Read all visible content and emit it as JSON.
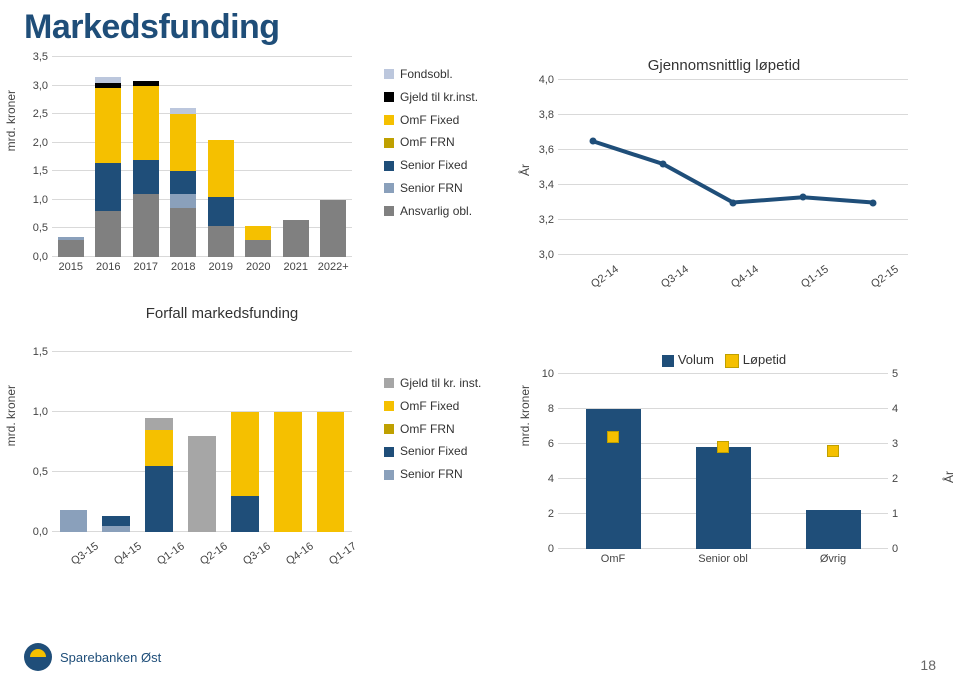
{
  "title": "Markedsfunding",
  "page_number": "18",
  "logo_text": "Sparebanken Øst",
  "colors": {
    "heading": "#1f4e79",
    "grid": "#d9d9d9",
    "fondsobl": "#bcc7dd",
    "gjeld": "#000000",
    "omf_fixed": "#f5c000",
    "omf_frn": "#bfa000",
    "senior_fixed": "#1f4e79",
    "senior_frn": "#8aa0bb",
    "ansvarlig": "#808080",
    "gjeld_inst": "#a6a6a6",
    "line": "#1f4e79",
    "volume_bar": "#1f4e79"
  },
  "chart1": {
    "axis_label": "mrd. kroner",
    "ylim": [
      0,
      3.5
    ],
    "ystep": 0.5,
    "categories": [
      "2015",
      "2016",
      "2017",
      "2018",
      "2019",
      "2020",
      "2021",
      "2022+"
    ],
    "legend": [
      {
        "key": "fondsobl",
        "label": "Fondsobl."
      },
      {
        "key": "gjeld",
        "label": "Gjeld til kr.inst."
      },
      {
        "key": "omf_fixed",
        "label": "OmF Fixed"
      },
      {
        "key": "omf_frn",
        "label": "OmF FRN"
      },
      {
        "key": "senior_fixed",
        "label": "Senior Fixed"
      },
      {
        "key": "senior_frn",
        "label": "Senior FRN"
      },
      {
        "key": "ansvarlig",
        "label": "Ansvarlig obl."
      }
    ],
    "stacks": [
      {
        "ansvarlig": 0.3,
        "senior_frn": 0.05,
        "senior_fixed": 0.0,
        "omf_frn": 0.0,
        "omf_fixed": 0.0,
        "gjeld": 0.0,
        "fondsobl": 0.0
      },
      {
        "ansvarlig": 0.8,
        "senior_frn": 0.0,
        "senior_fixed": 0.85,
        "omf_frn": 0.0,
        "omf_fixed": 1.3,
        "gjeld": 0.1,
        "fondsobl": 0.1
      },
      {
        "ansvarlig": 1.1,
        "senior_frn": 0.0,
        "senior_fixed": 0.6,
        "omf_frn": 0.0,
        "omf_fixed": 1.3,
        "gjeld": 0.08,
        "fondsobl": 0.0
      },
      {
        "ansvarlig": 0.85,
        "senior_frn": 0.25,
        "senior_fixed": 0.4,
        "omf_frn": 0.0,
        "omf_fixed": 1.0,
        "gjeld": 0.0,
        "fondsobl": 0.1
      },
      {
        "ansvarlig": 0.55,
        "senior_frn": 0.0,
        "senior_fixed": 0.5,
        "omf_frn": 0.0,
        "omf_fixed": 1.0,
        "gjeld": 0.0,
        "fondsobl": 0.0
      },
      {
        "ansvarlig": 0.3,
        "senior_frn": 0.0,
        "senior_fixed": 0.0,
        "omf_frn": 0.0,
        "omf_fixed": 0.25,
        "gjeld": 0.0,
        "fondsobl": 0.0
      },
      {
        "ansvarlig": 0.65,
        "senior_frn": 0.0,
        "senior_fixed": 0.0,
        "omf_frn": 0.0,
        "omf_fixed": 0.0,
        "gjeld": 0.0,
        "fondsobl": 0.0
      },
      {
        "ansvarlig": 1.0,
        "senior_frn": 0.0,
        "senior_fixed": 0.0,
        "omf_frn": 0.0,
        "omf_fixed": 0.0,
        "gjeld": 0.0,
        "fondsobl": 0.0
      }
    ],
    "subtitle": "Forfall markedsfunding"
  },
  "chart2": {
    "title": "Gjennomsnittlig løpetid",
    "axis_label": "År",
    "ylim": [
      3.0,
      4.0
    ],
    "ystep": 0.2,
    "categories": [
      "Q2-14",
      "Q3-14",
      "Q4-14",
      "Q1-15",
      "Q2-15"
    ],
    "values": [
      3.65,
      3.52,
      3.3,
      3.33,
      3.3
    ]
  },
  "chart3": {
    "axis_label": "mrd. kroner",
    "ylim": [
      0,
      1.5
    ],
    "ystep": 0.5,
    "categories": [
      "Q3-15",
      "Q4-15",
      "Q1-16",
      "Q2-16",
      "Q3-16",
      "Q4-16",
      "Q1-17"
    ],
    "legend": [
      {
        "key": "gjeld_inst",
        "label": "Gjeld til kr. inst."
      },
      {
        "key": "omf_fixed",
        "label": "OmF Fixed"
      },
      {
        "key": "omf_frn",
        "label": "OmF FRN"
      },
      {
        "key": "senior_fixed",
        "label": "Senior Fixed"
      },
      {
        "key": "senior_frn",
        "label": "Senior FRN"
      }
    ],
    "stacks": [
      {
        "senior_frn": 0.18,
        "senior_fixed": 0.0,
        "omf_frn": 0.0,
        "omf_fixed": 0.0,
        "gjeld_inst": 0.0
      },
      {
        "senior_frn": 0.05,
        "senior_fixed": 0.08,
        "omf_frn": 0.0,
        "omf_fixed": 0.0,
        "gjeld_inst": 0.0
      },
      {
        "senior_frn": 0.0,
        "senior_fixed": 0.55,
        "omf_frn": 0.0,
        "omf_fixed": 0.3,
        "gjeld_inst": 0.1
      },
      {
        "senior_frn": 0.0,
        "senior_fixed": 0.0,
        "omf_frn": 0.0,
        "omf_fixed": 0.0,
        "gjeld_inst": 0.8
      },
      {
        "senior_frn": 0.0,
        "senior_fixed": 0.3,
        "omf_frn": 0.0,
        "omf_fixed": 0.7,
        "gjeld_inst": 0.0
      },
      {
        "senior_frn": 0.0,
        "senior_fixed": 0.0,
        "omf_frn": 0.0,
        "omf_fixed": 1.0,
        "gjeld_inst": 0.0
      },
      {
        "senior_frn": 0.0,
        "senior_fixed": 0.0,
        "omf_frn": 0.0,
        "omf_fixed": 1.0,
        "gjeld_inst": 0.0
      }
    ]
  },
  "chart4": {
    "axis_label_left": "mrd. kroner",
    "axis_label_right": "År",
    "ylim_left": [
      0,
      10
    ],
    "ystep_left": 2,
    "ylim_right": [
      0,
      5
    ],
    "categories": [
      "OmF",
      "Senior obl",
      "Øvrig"
    ],
    "bar_values": [
      8.0,
      5.8,
      2.2
    ],
    "marker_values": [
      3.2,
      2.9,
      2.8
    ],
    "legend": [
      {
        "key": "volume_bar",
        "label": "Volum"
      },
      {
        "key": "omf_fixed",
        "label": "Løpetid"
      }
    ]
  }
}
